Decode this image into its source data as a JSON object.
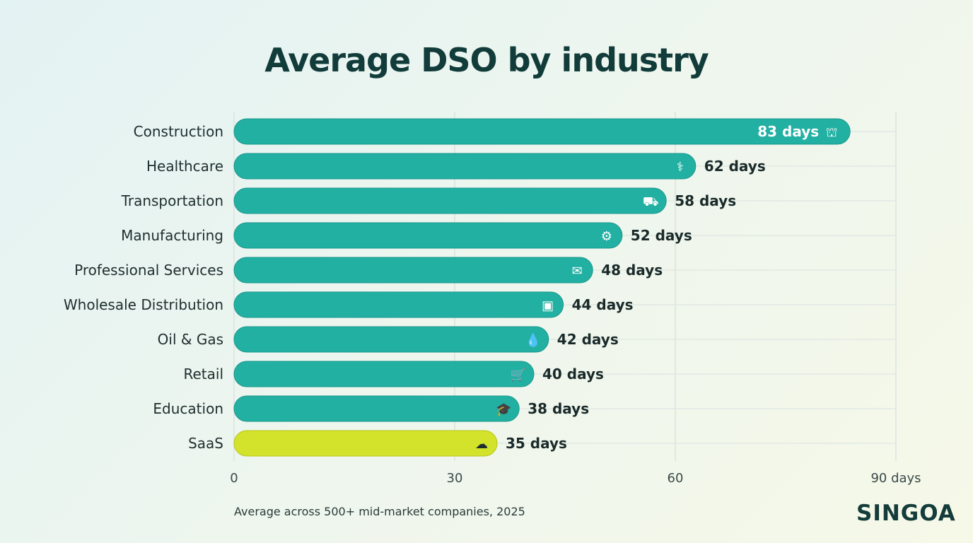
{
  "chart_data": {
    "type": "bar",
    "orientation": "horizontal",
    "title": "Average DSO by industry",
    "categories": [
      "Construction",
      "Healthcare",
      "Transportation",
      "Manufacturing",
      "Professional Services",
      "Wholesale Distribution",
      "Oil & Gas",
      "Retail",
      "Education",
      "SaaS"
    ],
    "values": [
      83,
      62,
      58,
      52,
      48,
      44,
      42,
      40,
      38,
      35
    ],
    "data_labels": [
      "83 days",
      "62 days",
      "58 days",
      "52 days",
      "48 days",
      "44 days",
      "42 days",
      "40 days",
      "38 days",
      "35 days"
    ],
    "icons": [
      "crane-icon",
      "caduceus-icon",
      "truck-icon",
      "gear-icon",
      "hand-invoice-icon",
      "package-icon",
      "droplet-icon",
      "cart-icon",
      "graduation-cap-icon",
      "cloud-upload-icon"
    ],
    "xlim": [
      0,
      90
    ],
    "xticks": [
      "0",
      "30",
      "60",
      "90 days"
    ],
    "xtick_values": [
      0,
      30,
      60,
      90
    ],
    "grid": true,
    "colors": {
      "default": "#22b0a3",
      "highlight": "#d3e22a",
      "highlight_category": "SaaS"
    }
  },
  "footnote": "Average across 500+ mid-market companies, 2025",
  "logo": "SINGOA"
}
